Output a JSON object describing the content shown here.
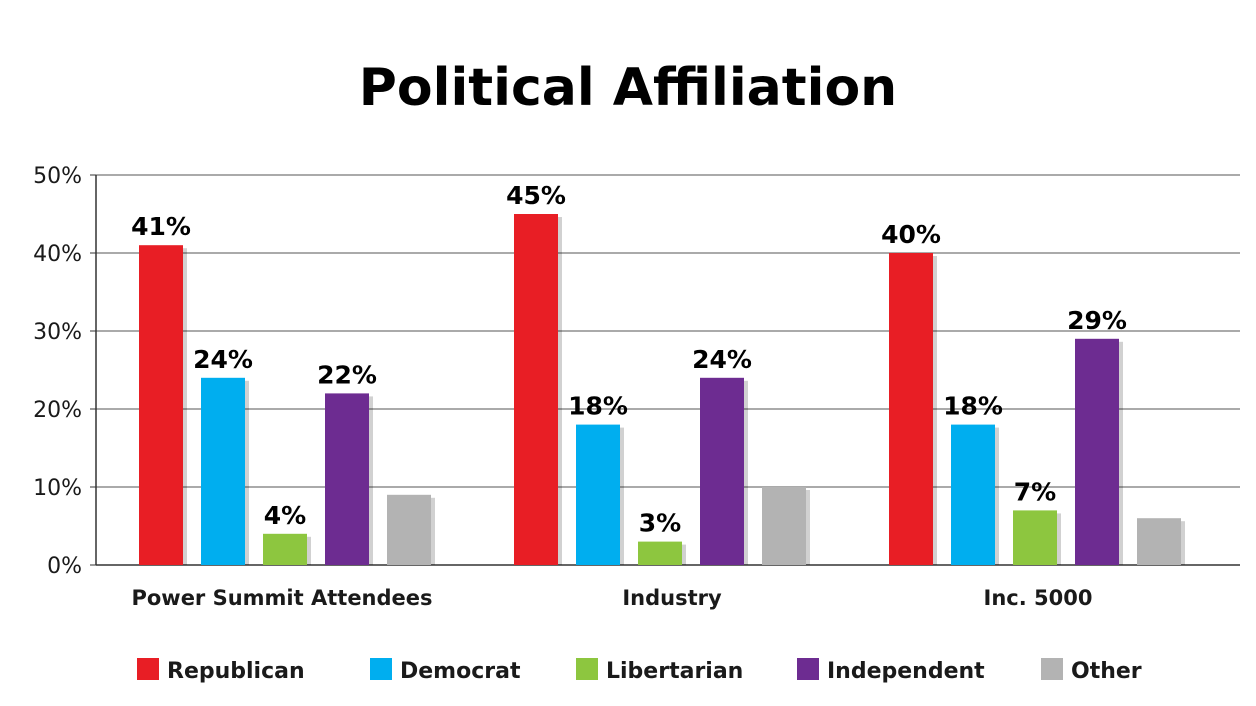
{
  "chart_data": {
    "type": "bar",
    "title": "Political Affiliation",
    "categories": [
      "Power Summit Attendees",
      "Industry",
      "Inc. 5000"
    ],
    "series": [
      {
        "name": "Republican",
        "color": "#e81e25",
        "values": [
          41,
          45,
          40
        ],
        "labels": [
          "41%",
          "45%",
          "40%"
        ]
      },
      {
        "name": "Democrat",
        "color": "#00aeef",
        "values": [
          24,
          18,
          18
        ],
        "labels": [
          "24%",
          "18%",
          "18%"
        ]
      },
      {
        "name": "Libertarian",
        "color": "#8dc63f",
        "values": [
          4,
          3,
          7
        ],
        "labels": [
          "4%",
          "3%",
          "7%"
        ]
      },
      {
        "name": "Independent",
        "color": "#6d2c91",
        "values": [
          22,
          24,
          29
        ],
        "labels": [
          "22%",
          "24%",
          "29%"
        ]
      },
      {
        "name": "Other",
        "color": "#b3b3b3",
        "values": [
          9,
          10,
          6
        ],
        "labels": [
          "",
          "",
          ""
        ]
      }
    ],
    "y_ticks": [
      "0%",
      "10%",
      "20%",
      "30%",
      "40%",
      "50%"
    ],
    "ylim": [
      0,
      50
    ],
    "grid": true,
    "legend_position": "bottom"
  }
}
